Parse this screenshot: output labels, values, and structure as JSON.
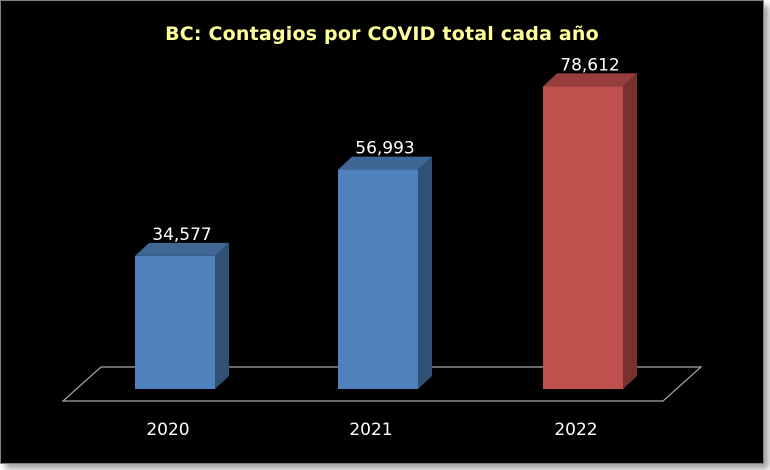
{
  "chart_data": {
    "type": "bar",
    "title": "BC: Contagios por COVID  total cada año",
    "categories": [
      "2020",
      "2021",
      "2022"
    ],
    "values": [
      34577,
      56993,
      78612
    ],
    "data_labels": [
      "34,577",
      "56,993",
      "78,612"
    ],
    "xlabel": "",
    "ylabel": "",
    "ylim": [
      0,
      80000
    ],
    "grid": false,
    "legend": "none",
    "style": "3d-column",
    "colors": {
      "background": "#000000",
      "title": "#ffff99",
      "text": "#ffffff",
      "bar_default": "#4f81bd",
      "bar_highlight": "#c0504d",
      "floor_edge": "#a6a6a6"
    },
    "bar_colors": [
      "#4f81bd",
      "#4f81bd",
      "#c0504d"
    ]
  }
}
